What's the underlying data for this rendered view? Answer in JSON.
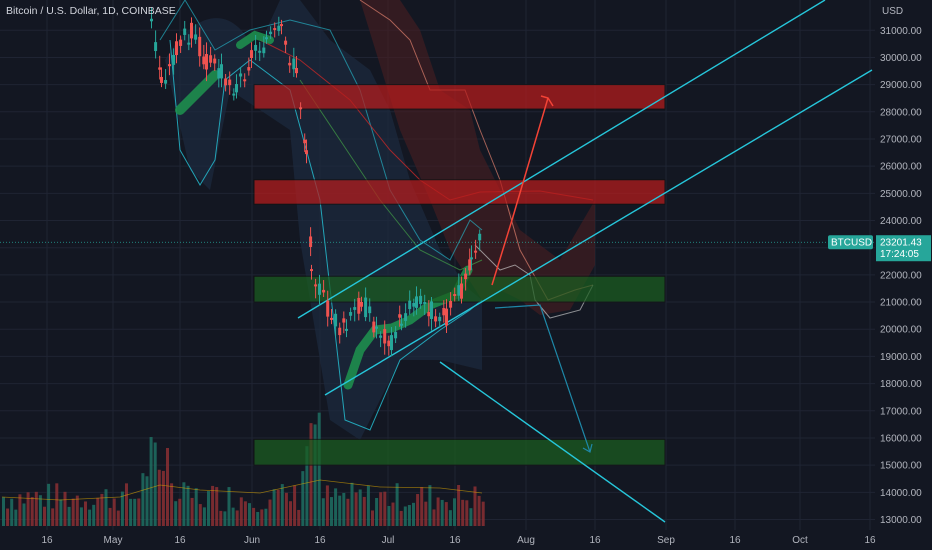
{
  "header": {
    "title": "Bitcoin / U.S. Dollar, 1D, COINBASE"
  },
  "price_scale": {
    "currency": "USD",
    "symbol_badge": "BTCUSD",
    "last_price": "23201.43",
    "countdown": "17:24:05"
  },
  "colors": {
    "background": "#131722",
    "up_candle": "#26a69a",
    "down_candle": "#ef5350",
    "channel_line": "#26c6da",
    "resistance_zone": "#b71c1c",
    "support_zone": "#1b5e20",
    "projection_up": "#f44336",
    "projection_down": "#1e88a8"
  },
  "chart_data": {
    "type": "candlestick",
    "title": "Bitcoin / U.S. Dollar, 1D, COINBASE",
    "xlabel": "",
    "ylabel": "USD",
    "ylim": [
      13000,
      32000
    ],
    "y_ticks": [
      13000,
      14000,
      15000,
      16000,
      17000,
      18000,
      19000,
      20000,
      21000,
      22000,
      23000,
      24000,
      25000,
      26000,
      27000,
      28000,
      29000,
      30000,
      31000
    ],
    "y_tick_labels": [
      "13000.00",
      "14000.00",
      "15000.00",
      "16000.00",
      "17000.00",
      "18000.00",
      "19000.00",
      "20000.00",
      "21000.00",
      "22000.00",
      "23000.00",
      "24000.00",
      "25000.00",
      "26000.00",
      "27000.00",
      "28000.00",
      "29000.00",
      "30000.00",
      "31000.00"
    ],
    "x_ticks": [
      "16",
      "May",
      "16",
      "Jun",
      "16",
      "Jul",
      "16",
      "Aug",
      "16",
      "Sep",
      "16",
      "Oct",
      "16"
    ],
    "grid": true,
    "last_price": 23201.43,
    "zones": [
      {
        "kind": "resistance",
        "from": 28100,
        "to": 29000
      },
      {
        "kind": "resistance",
        "from": 24600,
        "to": 25500
      },
      {
        "kind": "support",
        "from": 21000,
        "to": 21950
      },
      {
        "kind": "support",
        "from": 15000,
        "to": 15950
      }
    ]
  }
}
